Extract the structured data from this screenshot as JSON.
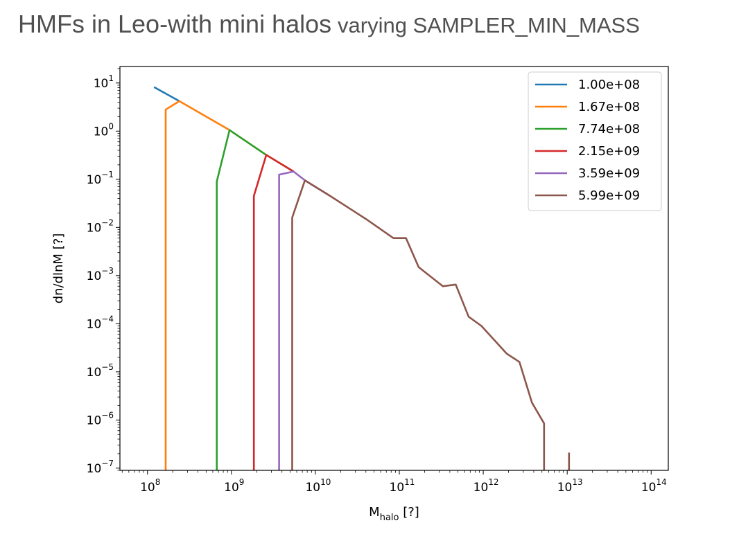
{
  "title": {
    "main": "HMFs in Leo-with mini halos",
    "sub": "varying SAMPLER_MIN_MASS"
  },
  "chart_data": {
    "type": "line",
    "xlabel": {
      "base": "M",
      "subscript": "halo",
      "unit": " [?]"
    },
    "ylabel": "dn/dlnM [?]",
    "xscale": "log",
    "yscale": "log",
    "xlim": [
      47000000.0,
      160000000000000.0
    ],
    "ylim": [
      9e-08,
      22.0
    ],
    "grid": false,
    "legend_position": "top-right",
    "x_ticks": [
      {
        "value": 100000000.0,
        "base": "10",
        "exp": "8"
      },
      {
        "value": 1000000000.0,
        "base": "10",
        "exp": "9"
      },
      {
        "value": 10000000000.0,
        "base": "10",
        "exp": "10"
      },
      {
        "value": 100000000000.0,
        "base": "10",
        "exp": "11"
      },
      {
        "value": 1000000000000.0,
        "base": "10",
        "exp": "12"
      },
      {
        "value": 10000000000000.0,
        "base": "10",
        "exp": "13"
      },
      {
        "value": 100000000000000.0,
        "base": "10",
        "exp": "14"
      }
    ],
    "y_ticks": [
      {
        "value": 10.0,
        "base": "10",
        "exp": "1"
      },
      {
        "value": 1.0,
        "base": "10",
        "exp": "0"
      },
      {
        "value": 0.1,
        "base": "10",
        "exp": "−1"
      },
      {
        "value": 0.01,
        "base": "10",
        "exp": "−2"
      },
      {
        "value": 0.001,
        "base": "10",
        "exp": "−3"
      },
      {
        "value": 0.0001,
        "base": "10",
        "exp": "−4"
      },
      {
        "value": 1e-05,
        "base": "10",
        "exp": "−5"
      },
      {
        "value": 1e-06,
        "base": "10",
        "exp": "−6"
      },
      {
        "value": 1e-07,
        "base": "10",
        "exp": "−7"
      }
    ],
    "series": [
      {
        "name": "1.00e+08",
        "color": "#1f77b4",
        "points": [
          [
            120000000.0,
            8.2
          ],
          [
            240000000.0,
            4.2
          ]
        ]
      },
      {
        "name": "1.67e+08",
        "color": "#ff7f0e",
        "points": [
          [
            165000000.0,
            9e-08
          ],
          [
            165000000.0,
            2.8
          ],
          [
            240000000.0,
            4.2
          ],
          [
            950000000.0,
            1.05
          ],
          [
            2600000000.0,
            0.32
          ],
          [
            5500000000.0,
            0.145
          ]
        ]
      },
      {
        "name": "7.74e+08",
        "color": "#2ca02c",
        "points": [
          [
            670000000.0,
            9e-08
          ],
          [
            670000000.0,
            0.09
          ],
          [
            950000000.0,
            1.05
          ],
          [
            2600000000.0,
            0.32
          ],
          [
            5500000000.0,
            0.145
          ]
        ]
      },
      {
        "name": "2.15e+09",
        "color": "#d62728",
        "points": [
          [
            1850000000.0,
            9e-08
          ],
          [
            1850000000.0,
            0.045
          ],
          [
            2600000000.0,
            0.32
          ],
          [
            5500000000.0,
            0.145
          ]
        ]
      },
      {
        "name": "3.59e+09",
        "color": "#9467bd",
        "points": [
          [
            3700000000.0,
            9e-08
          ],
          [
            3700000000.0,
            0.125
          ],
          [
            5500000000.0,
            0.145
          ],
          [
            7500000000.0,
            0.095
          ],
          [
            15000000000.0,
            0.045
          ]
        ]
      },
      {
        "name": "5.99e+09",
        "color": "#8c564b",
        "points": [
          [
            5300000000.0,
            9e-08
          ],
          [
            5300000000.0,
            0.016
          ],
          [
            7500000000.0,
            0.095
          ],
          [
            15000000000.0,
            0.045
          ],
          [
            40000000000.0,
            0.015
          ],
          [
            85000000000.0,
            0.006
          ],
          [
            120000000000.0,
            0.006
          ],
          [
            170000000000.0,
            0.0015
          ],
          [
            330000000000.0,
            0.0006
          ],
          [
            470000000000.0,
            0.00065
          ],
          [
            670000000000.0,
            0.00014
          ],
          [
            950000000000.0,
            9e-05
          ],
          [
            1900000000000.0,
            2.4e-05
          ],
          [
            2700000000000.0,
            1.6e-05
          ],
          [
            3800000000000.0,
            2.3e-06
          ],
          [
            5300000000000.0,
            8.5e-07
          ],
          [
            5300000000000.0,
            9e-08
          ]
        ]
      },
      {
        "name": "",
        "color": "#8c564b",
        "legend": false,
        "points": [
          [
            10500000000000.0,
            9e-08
          ],
          [
            10500000000000.0,
            2.1e-07
          ]
        ]
      }
    ]
  }
}
